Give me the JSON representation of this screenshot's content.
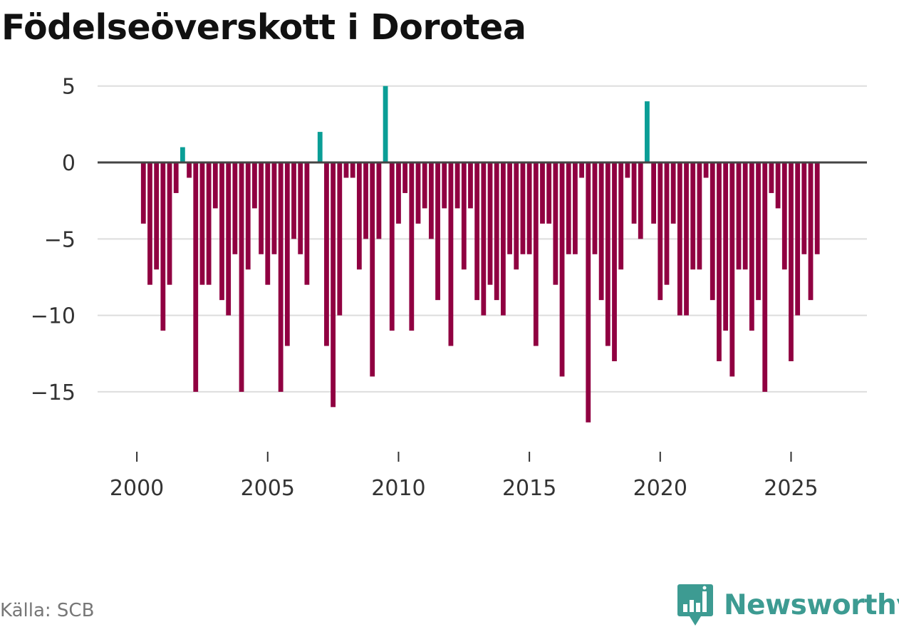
{
  "title": "Födelseöverskott i Dorotea",
  "source": "Källa: SCB",
  "brand": {
    "name": "Newsworthy",
    "logo_icon": "bar-chart-badge-icon"
  },
  "colors": {
    "positive": "#0a9e96",
    "negative": "#900041",
    "grid": "#dddddd",
    "zero_line": "#444444",
    "brand": "#3d9b92"
  },
  "chart_data": {
    "type": "bar",
    "title": "Födelseöverskott i Dorotea",
    "xlabel": "",
    "ylabel": "",
    "ylim": [
      -18.5,
      5.5
    ],
    "xlim": [
      1998.5,
      2027.9
    ],
    "y_ticks": [
      5,
      0,
      -5,
      -10,
      -15
    ],
    "y_tick_labels": [
      "5",
      "0",
      "−5",
      "−10",
      "−15"
    ],
    "x_ticks": [
      2000,
      2005,
      2010,
      2015,
      2020,
      2025
    ],
    "x_tick_labels": [
      "2000",
      "2005",
      "2010",
      "2015",
      "2020",
      "2025"
    ],
    "grid": true,
    "start_year": 2000,
    "periods_per_year": 4,
    "values": [
      -4,
      -8,
      -7,
      -11,
      -8,
      -2,
      1,
      -1,
      -15,
      -8,
      -8,
      -3,
      -9,
      -10,
      -6,
      -15,
      -7,
      -3,
      -6,
      -8,
      -6,
      -15,
      -12,
      -5,
      -6,
      -8,
      0,
      2,
      -12,
      -16,
      -10,
      -1,
      -1,
      -7,
      -5,
      -14,
      -5,
      5,
      -11,
      -4,
      -2,
      -11,
      -4,
      -3,
      -5,
      -9,
      -3,
      -12,
      -3,
      -7,
      -3,
      -9,
      -10,
      -8,
      -9,
      -10,
      -6,
      -7,
      -6,
      -6,
      -12,
      -4,
      -4,
      -8,
      -14,
      -6,
      -6,
      -1,
      -17,
      -6,
      -9,
      -12,
      -13,
      -7,
      -1,
      -4,
      -5,
      4,
      -4,
      -9,
      -8,
      -4,
      -10,
      -10,
      -7,
      -7,
      -1,
      -9,
      -13,
      -11,
      -14,
      -7,
      -7,
      -11,
      -9,
      -15,
      -2,
      -3,
      -7,
      -13,
      -10,
      -6,
      -9,
      -6
    ]
  }
}
